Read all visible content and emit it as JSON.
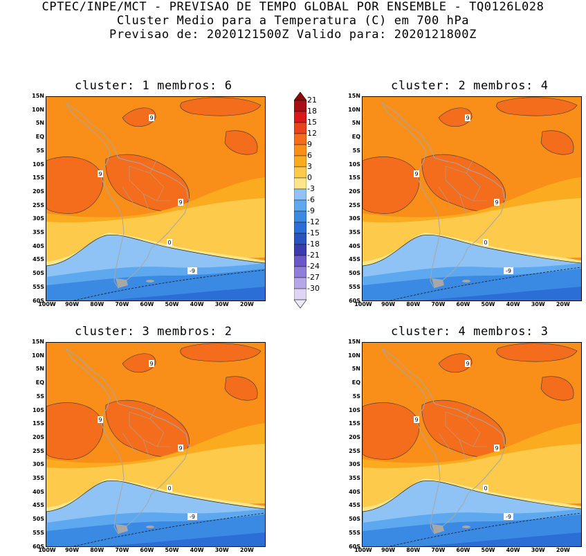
{
  "header": {
    "line1": "CPTEC/INPE/MCT - PREVISAO DE TEMPO GLOBAL POR ENSEMBLE - TQ0126L028",
    "line2": "Cluster Medio para a Temperatura (C) em 700 hPa",
    "line3": "Previsao de: 2020121500Z   Valido para: 2020121800Z"
  },
  "panels": [
    {
      "title": "cluster: 1   membros: 6"
    },
    {
      "title": "cluster: 2   membros: 4"
    },
    {
      "title": "cluster: 3   membros: 2"
    },
    {
      "title": "cluster: 4   membros: 3"
    }
  ],
  "axes": {
    "lat_ticks": [
      "15N",
      "10N",
      "5N",
      "EQ",
      "5S",
      "10S",
      "15S",
      "20S",
      "25S",
      "30S",
      "35S",
      "40S",
      "45S",
      "50S",
      "55S",
      "60S"
    ],
    "lon_ticks": [
      "100W",
      "90W",
      "80W",
      "70W",
      "60W",
      "50W",
      "40W",
      "30W",
      "20W"
    ]
  },
  "contour_labels": {
    "warm": "9",
    "zero": "0",
    "cold": "-9"
  },
  "colorbar": {
    "ticks": [
      "21",
      "18",
      "15",
      "12",
      "9",
      "6",
      "3",
      "0",
      "-3",
      "-6",
      "-9",
      "-12",
      "-15",
      "-18",
      "-21",
      "-24",
      "-27",
      "-30"
    ],
    "colors": [
      "#a50f15",
      "#d7191c",
      "#e8431b",
      "#f46d1c",
      "#f98e19",
      "#fbab1f",
      "#fdca4b",
      "#fde68a",
      "#8fc3f5",
      "#5ea8ef",
      "#3a8ae3",
      "#2b6fd6",
      "#2a52c0",
      "#3b3bb0",
      "#6b58c8",
      "#8f7fd8",
      "#b6a8e6",
      "#dcd6f3"
    ],
    "top_color": "#8b0a0a",
    "bottom_color": "#ece9f8"
  },
  "colors": {
    "orange_mid": "#f98e19",
    "orange_dark": "#f46d1c",
    "orange_light": "#fbab1f",
    "yellow": "#fdca4b",
    "yellow_pale": "#fde68a",
    "blue_light": "#8fc3f5",
    "blue_mid": "#5ea8ef",
    "blue_dark": "#3a8ae3",
    "blue_deep": "#2b6fd6",
    "land_outline": "#a7a7a7"
  }
}
